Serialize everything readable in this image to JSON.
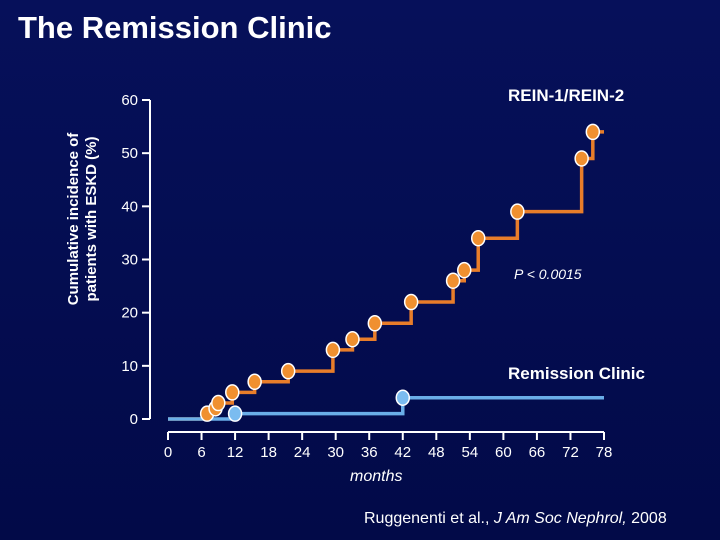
{
  "slide": {
    "title": "The Remission Clinic",
    "citation_authors": "Ruggenenti et al., ",
    "citation_journal": "J Am Soc Nephrol,",
    "citation_year": " 2008"
  },
  "chart_data": {
    "type": "line",
    "step": true,
    "ylabel_line1": "Cumulative incidence of",
    "ylabel_line2": "patients with ESKD (%)",
    "xlabel": "months",
    "ylim": [
      0,
      60
    ],
    "xlim": [
      0,
      78
    ],
    "yticks": [
      0,
      10,
      20,
      30,
      40,
      50,
      60
    ],
    "xticks": [
      0,
      6,
      12,
      18,
      24,
      30,
      36,
      42,
      48,
      54,
      60,
      66,
      72,
      78
    ],
    "annotation": "P < 0.0015",
    "colors": {
      "rein": "#e87d2a",
      "rein_marker": "#f09030",
      "remission": "#6aaee8",
      "remission_marker": "#7bbcf0",
      "axis": "#ffffff"
    },
    "series": [
      {
        "name": "REIN-1/REIN-2",
        "steps": [
          [
            0,
            0
          ],
          [
            7,
            1
          ],
          [
            8.5,
            2
          ],
          [
            9,
            3
          ],
          [
            11.5,
            5
          ],
          [
            15.5,
            7
          ],
          [
            21.5,
            9
          ],
          [
            29.5,
            13
          ],
          [
            33,
            15
          ],
          [
            37,
            18
          ],
          [
            43.5,
            22
          ],
          [
            51,
            26
          ],
          [
            53,
            28
          ],
          [
            55.5,
            34
          ],
          [
            62.5,
            39
          ],
          [
            74,
            49
          ],
          [
            76,
            54
          ],
          [
            78,
            54
          ]
        ],
        "markers": [
          [
            7,
            1
          ],
          [
            8.5,
            2
          ],
          [
            9,
            3
          ],
          [
            11.5,
            5
          ],
          [
            15.5,
            7
          ],
          [
            21.5,
            9
          ],
          [
            29.5,
            13
          ],
          [
            33,
            15
          ],
          [
            37,
            18
          ],
          [
            43.5,
            22
          ],
          [
            51,
            26
          ],
          [
            53,
            28
          ],
          [
            55.5,
            34
          ],
          [
            62.5,
            39
          ],
          [
            74,
            49
          ],
          [
            76,
            54
          ]
        ]
      },
      {
        "name": "Remission Clinic",
        "steps": [
          [
            0,
            0
          ],
          [
            12,
            1
          ],
          [
            42,
            1
          ],
          [
            42,
            4
          ],
          [
            78,
            4
          ]
        ],
        "markers": [
          [
            12,
            1
          ],
          [
            42,
            4
          ]
        ]
      }
    ]
  }
}
